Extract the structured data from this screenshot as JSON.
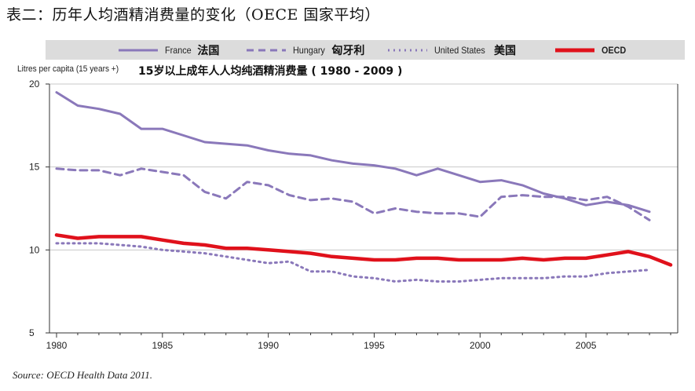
{
  "caption": "表二：历年人均酒精消费量的变化（OECE 国家平均）",
  "source": "Source:  OECD Health Data 2011.",
  "colors": {
    "france": "#8a78ba",
    "hungary": "#8a78ba",
    "us": "#8a78ba",
    "oecd": "#e0111b",
    "legend_bg": "#dcdcdc",
    "frame": "#333333"
  },
  "legend": [
    {
      "key": "france",
      "label": "France",
      "cn": "法国",
      "style": "solid"
    },
    {
      "key": "hungary",
      "label": "Hungary",
      "cn": "匈牙利",
      "style": "dashed"
    },
    {
      "key": "us",
      "label": "United States",
      "cn": "美国",
      "style": "dotted"
    },
    {
      "key": "oecd",
      "label": "OECD",
      "cn": "",
      "style": "solid-thick"
    }
  ],
  "chart_data": {
    "type": "line",
    "title": "15岁以上成年人人均纯酒精消费量 ( 1980 - 2009 )",
    "ylabel": "Litres per capita (15 years +)",
    "xlabel": "",
    "xlim": [
      1980,
      2009
    ],
    "ylim": [
      5,
      20
    ],
    "xticks": [
      1980,
      1985,
      1990,
      1995,
      2000,
      2005
    ],
    "yticks": [
      5,
      10,
      15,
      20
    ],
    "grid": "horizontal",
    "legend_position": "top",
    "series": [
      {
        "name": "France 法国",
        "key": "france",
        "x": [
          1980,
          1981,
          1982,
          1983,
          1984,
          1985,
          1986,
          1987,
          1988,
          1989,
          1990,
          1991,
          1992,
          1993,
          1994,
          1995,
          1996,
          1997,
          1998,
          1999,
          2000,
          2001,
          2002,
          2003,
          2004,
          2005,
          2006,
          2007,
          2008
        ],
        "values": [
          19.5,
          18.7,
          18.5,
          18.2,
          17.3,
          17.3,
          16.9,
          16.5,
          16.4,
          16.3,
          16.0,
          15.8,
          15.7,
          15.4,
          15.2,
          15.1,
          14.9,
          14.5,
          14.9,
          14.5,
          14.1,
          14.2,
          13.9,
          13.4,
          13.1,
          12.7,
          12.9,
          12.7,
          12.3
        ]
      },
      {
        "name": "Hungary 匈牙利",
        "key": "hungary",
        "x": [
          1980,
          1981,
          1982,
          1983,
          1984,
          1985,
          1986,
          1987,
          1988,
          1989,
          1990,
          1991,
          1992,
          1993,
          1994,
          1995,
          1996,
          1997,
          1998,
          1999,
          2000,
          2001,
          2002,
          2003,
          2004,
          2005,
          2006,
          2007,
          2008
        ],
        "values": [
          14.9,
          14.8,
          14.8,
          14.5,
          14.9,
          14.7,
          14.5,
          13.5,
          13.1,
          14.1,
          13.9,
          13.3,
          13.0,
          13.1,
          12.9,
          12.2,
          12.5,
          12.3,
          12.2,
          12.2,
          12.0,
          13.2,
          13.3,
          13.2,
          13.2,
          13.0,
          13.2,
          12.6,
          11.8
        ]
      },
      {
        "name": "United States 美国",
        "key": "us",
        "x": [
          1980,
          1981,
          1982,
          1983,
          1984,
          1985,
          1986,
          1987,
          1988,
          1989,
          1990,
          1991,
          1992,
          1993,
          1994,
          1995,
          1996,
          1997,
          1998,
          1999,
          2000,
          2001,
          2002,
          2003,
          2004,
          2005,
          2006,
          2007,
          2008
        ],
        "values": [
          10.4,
          10.4,
          10.4,
          10.3,
          10.2,
          10.0,
          9.9,
          9.8,
          9.6,
          9.4,
          9.2,
          9.3,
          8.7,
          8.7,
          8.4,
          8.3,
          8.1,
          8.2,
          8.1,
          8.1,
          8.2,
          8.3,
          8.3,
          8.3,
          8.4,
          8.4,
          8.6,
          8.7,
          8.8
        ]
      },
      {
        "name": "OECD",
        "key": "oecd",
        "x": [
          1980,
          1981,
          1982,
          1983,
          1984,
          1985,
          1986,
          1987,
          1988,
          1989,
          1990,
          1991,
          1992,
          1993,
          1994,
          1995,
          1996,
          1997,
          1998,
          1999,
          2000,
          2001,
          2002,
          2003,
          2004,
          2005,
          2006,
          2007,
          2008,
          2009
        ],
        "values": [
          10.9,
          10.7,
          10.8,
          10.8,
          10.8,
          10.6,
          10.4,
          10.3,
          10.1,
          10.1,
          10.0,
          9.9,
          9.8,
          9.6,
          9.5,
          9.4,
          9.4,
          9.5,
          9.5,
          9.4,
          9.4,
          9.4,
          9.5,
          9.4,
          9.5,
          9.5,
          9.7,
          9.9,
          9.6,
          9.1
        ]
      }
    ]
  }
}
